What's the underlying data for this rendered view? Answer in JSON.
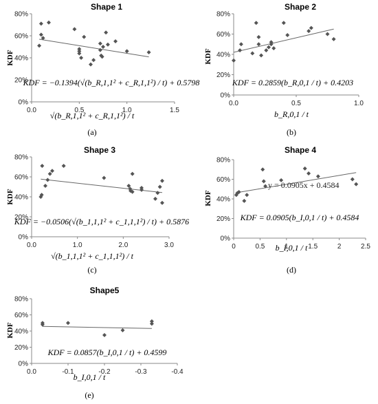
{
  "chart_data": [
    {
      "type": "scatter",
      "title": "Shape 1",
      "ylabel": "KDF",
      "xlabel": "√(b_R,1,1² + c_R,1,1²) / t",
      "equation": "KDF = −0.1394(√(b_R,1,1² + c_R,1,1²) / t) + 0.5798",
      "caption": "(a)",
      "xlim": [
        0,
        1.5
      ],
      "ylim": [
        0,
        80
      ],
      "xticks": [
        "0.0",
        "0.5",
        "1.0",
        "1.5"
      ],
      "yticks": [
        "0%",
        "20%",
        "40%",
        "60%",
        "80%"
      ],
      "x": [
        0.08,
        0.1,
        0.12,
        0.1,
        0.18,
        0.45,
        0.5,
        0.5,
        0.5,
        0.52,
        0.55,
        0.62,
        0.65,
        0.72,
        0.72,
        0.73,
        0.74,
        0.75,
        0.78,
        0.8,
        0.88,
        1.0,
        1.23
      ],
      "y": [
        51,
        71,
        58,
        61,
        72,
        66,
        48,
        46,
        44,
        40,
        59,
        34,
        38,
        53,
        47,
        42,
        41,
        50,
        63,
        52,
        55,
        46,
        45
      ],
      "fit": {
        "slope": -0.1394,
        "intercept": 0.5798
      }
    },
    {
      "type": "scatter",
      "title": "Shape 2",
      "ylabel": "KDF",
      "xlabel": "b_R,0,1 / t",
      "equation": "KDF = 0.2859(b_R,0,1 / t) + 0.4203",
      "caption": "(b)",
      "xlim": [
        0,
        1
      ],
      "ylim": [
        0,
        80
      ],
      "xticks": [
        "0.0",
        "0.5",
        "1.0"
      ],
      "yticks": [
        "0%",
        "20%",
        "40%",
        "60%",
        "80%"
      ],
      "x": [
        0.0,
        0.05,
        0.06,
        0.15,
        0.18,
        0.2,
        0.2,
        0.22,
        0.26,
        0.28,
        0.3,
        0.3,
        0.32,
        0.4,
        0.43,
        0.6,
        0.62,
        0.75,
        0.8
      ],
      "y": [
        34,
        44,
        50,
        41,
        71,
        57,
        50,
        39,
        44,
        47,
        52,
        50,
        46,
        71,
        59,
        63,
        66,
        60,
        55
      ],
      "fit": {
        "slope": 0.2859,
        "intercept": 0.4203
      }
    },
    {
      "type": "scatter",
      "title": "Shape 3",
      "ylabel": "KDF",
      "xlabel": "√(b_1,1,1² + c_1,1,1²) / t",
      "equation": "KDF = −0.0506(√(b_1,1,1² + c_1,1,1²) / t) + 0.5876",
      "caption": "(c)",
      "xlim": [
        0,
        3
      ],
      "ylim": [
        0,
        80
      ],
      "xticks": [
        "0.0",
        "1.0",
        "2.0",
        "3.0"
      ],
      "yticks": [
        "0%",
        "20%",
        "40%",
        "60%",
        "80%"
      ],
      "x": [
        0.2,
        0.22,
        0.23,
        0.3,
        0.35,
        0.4,
        0.45,
        0.7,
        1.58,
        2.12,
        2.15,
        2.16,
        2.2,
        2.2,
        2.4,
        2.4,
        2.7,
        2.75,
        2.8,
        2.85,
        2.85
      ],
      "y": [
        40,
        42,
        71,
        51,
        57,
        63,
        66,
        71,
        59,
        51,
        48,
        46,
        45,
        63,
        49,
        47,
        38,
        44,
        50,
        34,
        56
      ],
      "fit": {
        "slope": -0.0506,
        "intercept": 0.5876
      }
    },
    {
      "type": "scatter",
      "title": "Shape 4",
      "ylabel": "KDF",
      "xlabel": "b_I,0,1 / t",
      "equation": "KDF = 0.0905(b_I,0,1 / t) + 0.4584",
      "trend_label": "y = 0.0905x + 0.4584",
      "caption": "(d)",
      "xlim": [
        0,
        2.5
      ],
      "ylim": [
        0,
        80
      ],
      "xticks": [
        "0",
        "0.5",
        "1",
        "1.5",
        "2",
        "2.5"
      ],
      "yticks": [
        "0%",
        "20%",
        "40%",
        "60%",
        "80%"
      ],
      "x": [
        0.05,
        0.07,
        0.1,
        0.2,
        0.25,
        0.55,
        0.57,
        0.6,
        0.9,
        1.35,
        1.42,
        1.6,
        2.25,
        2.32
      ],
      "y": [
        44,
        46,
        47,
        38,
        44,
        70,
        58,
        53,
        59,
        71,
        66,
        63,
        60,
        55
      ],
      "fit": {
        "slope": 0.0905,
        "intercept": 0.4584
      }
    },
    {
      "type": "scatter",
      "title": "Shape5",
      "ylabel": "KDF",
      "xlabel": "b_I,0,1 / t",
      "equation": "KDF = 0.0857(b_I,0,1 / t) + 0.4599",
      "caption": "(e)",
      "xlim": [
        0,
        -0.4
      ],
      "ylim": [
        0,
        80
      ],
      "xticks": [
        "0.0",
        "-0.1",
        "-0.2",
        "-0.3",
        "-0.4"
      ],
      "yticks": [
        "0%",
        "20%",
        "40%",
        "60%",
        "80%"
      ],
      "x": [
        -0.03,
        -0.03,
        -0.1,
        -0.2,
        -0.25,
        -0.33,
        -0.33
      ],
      "y": [
        48,
        50,
        50,
        35,
        41,
        49,
        52
      ],
      "fit": {
        "slope": 0.0857,
        "intercept": 0.4599
      }
    }
  ]
}
